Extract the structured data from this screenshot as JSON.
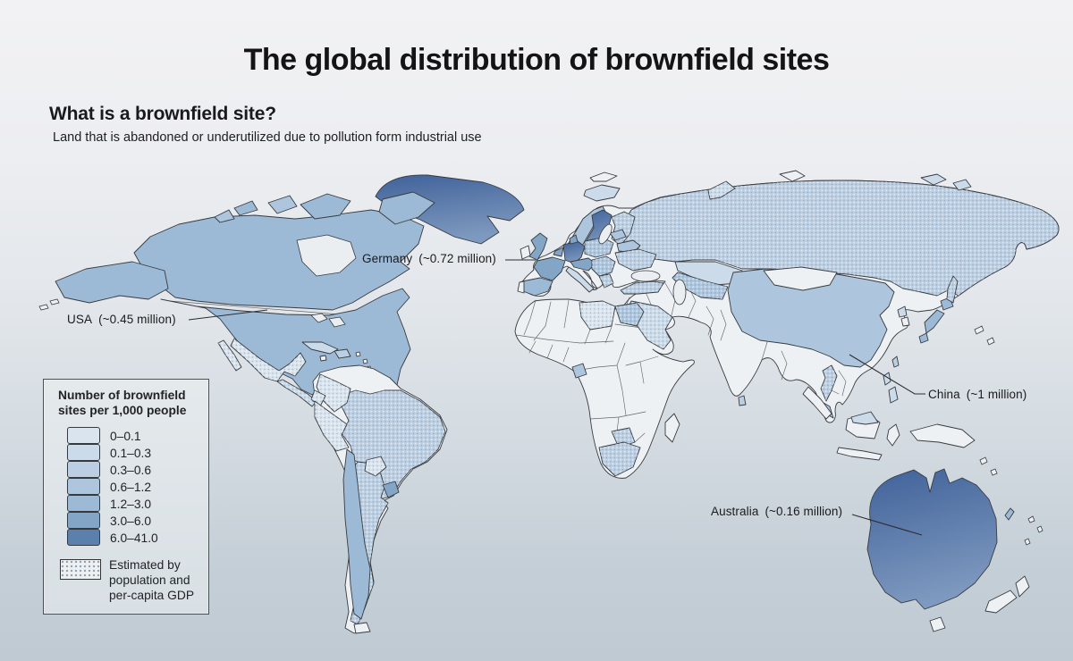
{
  "title": "The global distribution of brownfield sites",
  "intro": {
    "question": "What is a brownfield site?",
    "answer": "Land that is abandoned or underutilized due to pollution form industrial use"
  },
  "legend": {
    "title_lines": [
      "Number of brownfield",
      "sites per 1,000 people"
    ],
    "classes": [
      {
        "range": "0–0.1",
        "color": "#d9e4ee"
      },
      {
        "range": "0.1–0.3",
        "color": "#cbdbe9"
      },
      {
        "range": "0.3–0.6",
        "color": "#bccfe2"
      },
      {
        "range": "0.6–1.2",
        "color": "#adc6dd"
      },
      {
        "range": "1.2–3.0",
        "color": "#9cbad5"
      },
      {
        "range": "3.0–6.0",
        "color": "#84a6c6"
      },
      {
        "range": "6.0–41.0",
        "color": "#5c80ac"
      }
    ],
    "estimated_label": "Estimated by population and per-capita GDP",
    "no_data_color": "#eef1f4",
    "dark_region_gradient": [
      "#40629a",
      "#7e99bf"
    ]
  },
  "annotations": [
    {
      "country": "Germany",
      "value": "(~0.72 million)"
    },
    {
      "country": "USA",
      "value": "(~0.45 million)"
    },
    {
      "country": "China",
      "value": "(~1 million)"
    },
    {
      "country": "Australia",
      "value": "(~0.16 million)"
    }
  ],
  "map": {
    "regions": {
      "eurasia-africa-base": {
        "class": null,
        "estimated": false
      },
      "south-america-base": {
        "class": null,
        "estimated": false
      },
      "greenland": {
        "class": 6,
        "estimated": false
      },
      "iceland": {
        "class": 1,
        "estimated": false
      },
      "svalbard": {
        "class": null,
        "estimated": false
      },
      "novaya-zemlya": {
        "class": 1,
        "estimated": true
      },
      "arctic-island-a": {
        "class": null,
        "estimated": false
      },
      "arctic-island-b": {
        "class": 1,
        "estimated": false
      },
      "arctic-island-c": {
        "class": 1,
        "estimated": false
      },
      "canada": {
        "class": 4,
        "estimated": false
      },
      "baffin-island": {
        "class": 4,
        "estimated": false
      },
      "victoria-island": {
        "class": 4,
        "estimated": false
      },
      "banks-island": {
        "class": 3,
        "estimated": false
      },
      "arctic-small-a": {
        "class": 4,
        "estimated": false
      },
      "arctic-small-b": {
        "class": 3,
        "estimated": false
      },
      "alaska": {
        "class": 4,
        "estimated": false
      },
      "usa": {
        "class": 4,
        "estimated": false
      },
      "mexico": {
        "class": 0,
        "estimated": true
      },
      "baja-california": {
        "class": 0,
        "estimated": true
      },
      "central-america": {
        "class": 1,
        "estimated": true
      },
      "cuba": {
        "class": 1,
        "estimated": false
      },
      "hispaniola": {
        "class": 2,
        "estimated": false
      },
      "jamaica": {
        "class": null,
        "estimated": false
      },
      "colombia": {
        "class": 0,
        "estimated": true
      },
      "ecuador": {
        "class": 0,
        "estimated": true
      },
      "peru": {
        "class": 0,
        "estimated": true
      },
      "brazil": {
        "class": 2,
        "estimated": true
      },
      "paraguay": {
        "class": 0,
        "estimated": true
      },
      "argentina": {
        "class": 2,
        "estimated": true
      },
      "uruguay": {
        "class": 5,
        "estimated": false
      },
      "chile": {
        "class": 4,
        "estimated": false
      },
      "tierra-del-fuego": {
        "class": null,
        "estimated": false
      },
      "norway": {
        "class": 3,
        "estimated": false
      },
      "sweden": {
        "class": 6,
        "estimated": false
      },
      "finland": {
        "class": 2,
        "estimated": true
      },
      "denmark": {
        "class": 5,
        "estimated": false
      },
      "uk": {
        "class": 5,
        "estimated": false
      },
      "ireland": {
        "class": null,
        "estimated": false
      },
      "france": {
        "class": 5,
        "estimated": false
      },
      "spain": {
        "class": 4,
        "estimated": false
      },
      "portugal": {
        "class": null,
        "estimated": false
      },
      "germany": {
        "class": 6,
        "estimated": false
      },
      "benelux": {
        "class": 5,
        "estimated": false
      },
      "poland": {
        "class": 3,
        "estimated": true
      },
      "czech-austria": {
        "class": 5,
        "estimated": false
      },
      "italy": {
        "class": 1,
        "estimated": false
      },
      "balkans": {
        "class": 3,
        "estimated": true
      },
      "greece": {
        "class": 2,
        "estimated": true
      },
      "baltics": {
        "class": 3,
        "estimated": false
      },
      "belarus": {
        "class": 3,
        "estimated": false
      },
      "ukraine": {
        "class": 2,
        "estimated": true
      },
      "russia": {
        "class": 2,
        "estimated": true
      },
      "sakhalin": {
        "class": 2,
        "estimated": true
      },
      "kazakhstan": {
        "class": 1,
        "estimated": false
      },
      "central-asia": {
        "class": 3,
        "estimated": true
      },
      "turkey": {
        "class": 2,
        "estimated": true
      },
      "saudi-peninsula": {
        "class": 1,
        "estimated": true
      },
      "egypt": {
        "class": 3,
        "estimated": true
      },
      "libya": {
        "class": 0,
        "estimated": true
      },
      "gabon": {
        "class": 3,
        "estimated": false
      },
      "botswana": {
        "class": 2,
        "estimated": true
      },
      "south-africa": {
        "class": 2,
        "estimated": true
      },
      "madagascar": {
        "class": null,
        "estimated": false
      },
      "china": {
        "class": 3,
        "estimated": false
      },
      "mongolia": {
        "class": null,
        "estimated": false
      },
      "north-korea": {
        "class": 1,
        "estimated": false
      },
      "south-korea": {
        "class": null,
        "estimated": false
      },
      "japan-hokkaido": {
        "class": 4,
        "estimated": false
      },
      "japan-honshu": {
        "class": 4,
        "estimated": false
      },
      "japan-kyushu": {
        "class": 4,
        "estimated": false
      },
      "sri-lanka": {
        "class": 2,
        "estimated": false
      },
      "thailand": {
        "class": 2,
        "estimated": true
      },
      "malaysia-peninsula": {
        "class": 3,
        "estimated": false
      },
      "malaysia-borneo": {
        "class": 1,
        "estimated": false
      },
      "sumatra": {
        "class": null,
        "estimated": false
      },
      "borneo": {
        "class": null,
        "estimated": false
      },
      "java": {
        "class": null,
        "estimated": false
      },
      "sulawesi": {
        "class": null,
        "estimated": false
      },
      "new-guinea": {
        "class": null,
        "estimated": false
      },
      "philippines-a": {
        "class": 1,
        "estimated": false
      },
      "philippines-b": {
        "class": 1,
        "estimated": false
      },
      "taiwan": {
        "class": 2,
        "estimated": false
      },
      "australia": {
        "class": 6,
        "estimated": false
      },
      "tasmania": {
        "class": null,
        "estimated": false
      },
      "nz-north": {
        "class": null,
        "estimated": false
      },
      "nz-south": {
        "class": null,
        "estimated": false
      },
      "new-caledonia": {
        "class": 4,
        "estimated": false
      }
    }
  }
}
